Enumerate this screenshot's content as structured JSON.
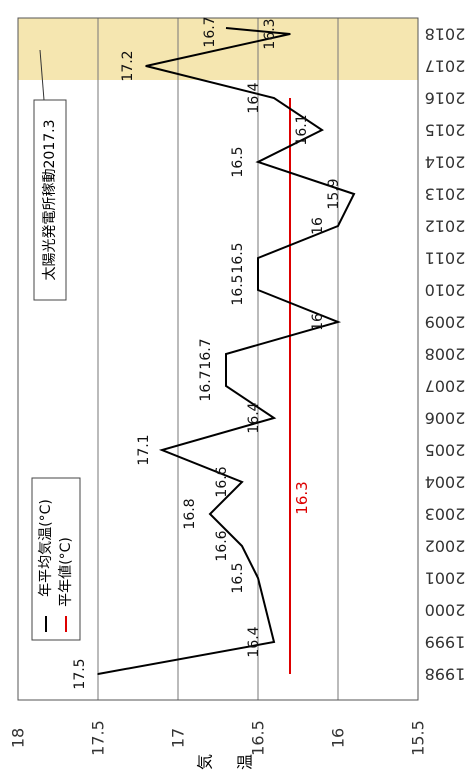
{
  "chart_data": {
    "type": "line",
    "orientation": "rotated-90",
    "x": [
      1998,
      1999,
      2000,
      2001,
      2002,
      2003,
      2004,
      2005,
      2006,
      2007,
      2008,
      2009,
      2010,
      2011,
      2012,
      2013,
      2014,
      2015,
      2016,
      2017,
      2018
    ],
    "series": [
      {
        "name": "年平均気温(°C)",
        "color": "#000000",
        "values": [
          17.5,
          16.4,
          16.45,
          16.5,
          16.6,
          16.8,
          16.6,
          17.1,
          16.4,
          16.7,
          16.7,
          16.0,
          16.5,
          16.5,
          16.0,
          15.9,
          16.5,
          16.1,
          16.4,
          17.2,
          16.3
        ],
        "labels": [
          "17.5",
          "16.4",
          "",
          "16.5",
          "16.6",
          "16.8",
          "16.6",
          "17.1",
          "16.4",
          "16.7",
          "16.7",
          "16",
          "16.5",
          "16.5",
          "16",
          "15.9",
          "16.5",
          "16.1",
          "16.4",
          "17.2",
          "16.3"
        ],
        "extra_point": {
          "x": 2018,
          "value": 16.7,
          "label": "16.7"
        }
      },
      {
        "name": "平年値(°C)",
        "color": "#dd0000",
        "values": [
          16.3,
          16.3,
          16.3,
          16.3,
          16.3,
          16.3,
          16.3,
          16.3,
          16.3,
          16.3,
          16.3,
          16.3,
          16.3,
          16.3,
          16.3,
          16.3,
          16.3,
          16.3,
          16.3,
          16.3,
          16.3
        ],
        "label": "16.3"
      }
    ],
    "xticks": [
      "1998",
      "1999",
      "2000",
      "2001",
      "2002",
      "2003",
      "2004",
      "2005",
      "2006",
      "2007",
      "2008",
      "2009",
      "2010",
      "2011",
      "2012",
      "2013",
      "2014",
      "2015",
      "2016",
      "2017",
      "2018"
    ],
    "yticks": [
      "18",
      "17.5",
      "17",
      "16.5",
      "16",
      "15.5"
    ],
    "ylim": [
      15.5,
      18
    ],
    "ylabel": "気温",
    "grid": true,
    "legend": "bottom-left",
    "annotation": "太陽光発電所稼動2017.3",
    "highlight_color": "#f5e6b0"
  }
}
